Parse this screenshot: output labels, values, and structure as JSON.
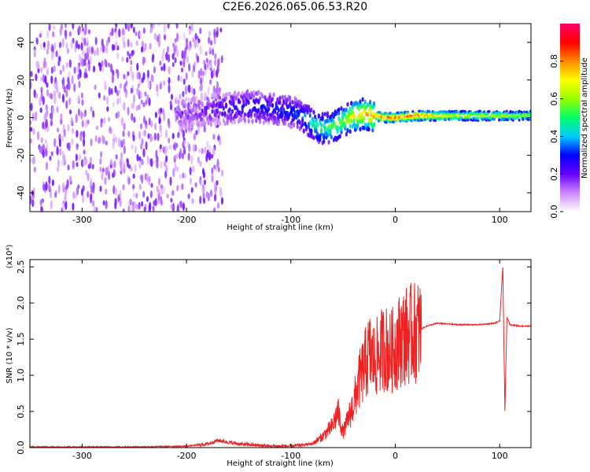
{
  "title": "C2E6.2026.065.06.53.R20",
  "chart_data": [
    {
      "type": "heatmap",
      "xlabel": "Height of straight line (km)",
      "ylabel": "Frequency (Hz)",
      "xlim": [
        -350,
        130
      ],
      "ylim": [
        -50,
        50
      ],
      "x_ticks": [
        -300,
        -200,
        -100,
        0,
        100
      ],
      "x_tick_labels": [
        "-300",
        "-200",
        "-100",
        "0",
        "100"
      ],
      "y_ticks": [
        -40,
        -20,
        0,
        20,
        40
      ],
      "y_tick_labels": [
        "-40",
        "-20",
        "0",
        "20",
        "40"
      ],
      "colorbar": {
        "label": "Normalized spectral amplitude",
        "range": [
          0,
          1
        ],
        "ticks": [
          0,
          0.2,
          0.4,
          0.6,
          0.8
        ],
        "tick_labels": [
          "0.0",
          "0.2",
          "0.4",
          "0.6",
          "0.8"
        ],
        "colormap": [
          "#ffffff",
          "#cc88ff",
          "#6600ff",
          "#0000ff",
          "#00ccff",
          "#00ff66",
          "#99ff00",
          "#ffff00",
          "#ff8800",
          "#ff0000",
          "#ff0066"
        ]
      },
      "ridge_x": [
        -205,
        -180,
        -160,
        -140,
        -120,
        -100,
        -90,
        -80,
        -70,
        -60,
        -50,
        -40,
        -30,
        -20,
        -10,
        0,
        20,
        50,
        100,
        130
      ],
      "ridge_y": [
        2,
        4,
        5,
        6,
        5,
        3,
        1,
        -3,
        -6,
        -5,
        -2,
        1,
        2,
        1,
        0,
        0,
        1,
        1,
        1,
        1
      ],
      "ridge_amp": [
        0.15,
        0.2,
        0.25,
        0.3,
        0.3,
        0.32,
        0.35,
        0.45,
        0.5,
        0.55,
        0.6,
        0.7,
        0.75,
        0.8,
        0.85,
        0.88,
        0.85,
        0.7,
        0.65,
        0.6
      ],
      "noise_region_xlim": [
        -350,
        -165
      ]
    },
    {
      "type": "line",
      "xlabel": "Height of straight line (km)",
      "ylabel": "SNR (10 * v/v)",
      "y_multiplier": "(x10⁴)",
      "xlim": [
        -350,
        130
      ],
      "ylim": [
        0,
        2.6
      ],
      "x_ticks": [
        -300,
        -200,
        -100,
        0,
        100
      ],
      "x_tick_labels": [
        "-300",
        "-200",
        "-100",
        "0",
        "100"
      ],
      "y_ticks": [
        0,
        0.5,
        1.0,
        1.5,
        2.0,
        2.5
      ],
      "y_tick_labels": [
        "0.0",
        "0.5",
        "1.0",
        "1.5",
        "2.0",
        "2.5"
      ],
      "series": [
        {
          "color": "#ee2222",
          "x": [
            -350,
            -300,
            -250,
            -200,
            -180,
            -170,
            -150,
            -120,
            -100,
            -80,
            -70,
            -60,
            -55,
            -50,
            -45,
            -40,
            -35,
            -30,
            -25,
            -20,
            -15,
            -10,
            -5,
            0,
            5,
            10,
            20,
            30,
            40,
            60,
            80,
            95,
            100,
            103,
            105,
            107,
            110,
            120,
            130
          ],
          "y": [
            0.01,
            0.01,
            0.01,
            0.02,
            0.05,
            0.1,
            0.05,
            0.02,
            0.02,
            0.05,
            0.15,
            0.3,
            0.5,
            0.2,
            0.4,
            0.6,
            0.9,
            1.1,
            1.3,
            1.2,
            1.3,
            1.4,
            1.3,
            1.4,
            1.5,
            1.55,
            1.6,
            1.68,
            1.72,
            1.7,
            1.7,
            1.72,
            1.75,
            2.5,
            0.5,
            1.8,
            1.7,
            1.68,
            1.68
          ]
        }
      ]
    }
  ]
}
